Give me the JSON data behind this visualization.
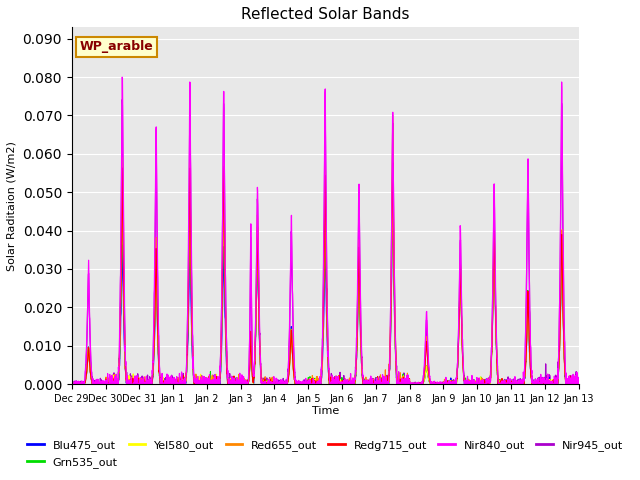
{
  "title": "Reflected Solar Bands",
  "xlabel": "Time",
  "ylabel": "Solar Raditaion (W/m2)",
  "ylim": [
    0,
    0.093
  ],
  "background_color": "#e8e8e8",
  "annotation_text": "WP_arable",
  "annotation_facecolor": "#ffffcc",
  "annotation_edgecolor": "#cc8800",
  "annotation_textcolor": "#880000",
  "series": [
    {
      "label": "Blu475_out",
      "color": "#0000ff",
      "lw": 0.8
    },
    {
      "label": "Grn535_out",
      "color": "#00dd00",
      "lw": 0.8
    },
    {
      "label": "Yel580_out",
      "color": "#ffff00",
      "lw": 0.8
    },
    {
      "label": "Red655_out",
      "color": "#ff8800",
      "lw": 0.8
    },
    {
      "label": "Redg715_out",
      "color": "#ff0000",
      "lw": 0.8
    },
    {
      "label": "Nir840_out",
      "color": "#ff00ff",
      "lw": 0.9
    },
    {
      "label": "Nir945_out",
      "color": "#aa00cc",
      "lw": 0.9
    }
  ],
  "tick_labels": [
    "Dec 29",
    "Dec 30",
    "Dec 31",
    "Jan 1",
    "Jan 2",
    "Jan 3",
    "Jan 4",
    "Jan 5",
    "Jan 6",
    "Jan 7",
    "Jan 8",
    "Jan 9",
    "Jan 10",
    "Jan 11",
    "Jan 12",
    "Jan 13"
  ],
  "tick_positions": [
    0,
    1,
    2,
    3,
    4,
    5,
    6,
    7,
    8,
    9,
    10,
    11,
    12,
    13,
    14,
    15
  ],
  "day_peaks": {
    "Nir840_out": [
      0.033,
      0.085,
      0.071,
      0.082,
      0.081,
      0.054,
      0.046,
      0.08,
      0.055,
      0.075,
      0.02,
      0.043,
      0.056,
      0.062,
      0.082,
      0.081
    ],
    "Nir945_out": [
      0.03,
      0.078,
      0.065,
      0.076,
      0.078,
      0.05,
      0.042,
      0.075,
      0.052,
      0.072,
      0.018,
      0.04,
      0.052,
      0.06,
      0.078,
      0.071
    ],
    "Blu475_out": [
      0.01,
      0.038,
      0.03,
      0.039,
      0.038,
      0.038,
      0.016,
      0.039,
      0.031,
      0.052,
      0.005,
      0.033,
      0.041,
      0.022,
      0.04,
      0.039
    ],
    "Grn535_out": [
      0.01,
      0.052,
      0.035,
      0.055,
      0.055,
      0.04,
      0.015,
      0.055,
      0.035,
      0.054,
      0.005,
      0.033,
      0.043,
      0.025,
      0.04,
      0.039
    ],
    "Yel580_out": [
      0.01,
      0.057,
      0.037,
      0.058,
      0.058,
      0.043,
      0.015,
      0.057,
      0.037,
      0.057,
      0.005,
      0.033,
      0.044,
      0.025,
      0.042,
      0.04
    ],
    "Red655_out": [
      0.01,
      0.062,
      0.04,
      0.062,
      0.062,
      0.046,
      0.015,
      0.061,
      0.04,
      0.073,
      0.013,
      0.033,
      0.044,
      0.025,
      0.042,
      0.04
    ],
    "Redg715_out": [
      0.01,
      0.06,
      0.038,
      0.06,
      0.06,
      0.044,
      0.015,
      0.058,
      0.038,
      0.062,
      0.012,
      0.033,
      0.044,
      0.025,
      0.042,
      0.04
    ]
  },
  "day_peaks2": {
    "Nir840_out": [
      0.0,
      0.0,
      0.0,
      0.0,
      0.0,
      0.042,
      0.0,
      0.0,
      0.0,
      0.0,
      0.0,
      0.0,
      0.0,
      0.0,
      0.0,
      0.082
    ],
    "Nir945_out": [
      0.0,
      0.0,
      0.0,
      0.0,
      0.0,
      0.039,
      0.0,
      0.0,
      0.0,
      0.0,
      0.0,
      0.0,
      0.0,
      0.0,
      0.0,
      0.078
    ],
    "Blu475_out": [
      0.0,
      0.0,
      0.0,
      0.0,
      0.0,
      0.013,
      0.0,
      0.0,
      0.0,
      0.0,
      0.0,
      0.0,
      0.0,
      0.0,
      0.0,
      0.038
    ],
    "Grn535_out": [
      0.0,
      0.0,
      0.0,
      0.0,
      0.0,
      0.014,
      0.0,
      0.0,
      0.0,
      0.0,
      0.0,
      0.0,
      0.0,
      0.0,
      0.0,
      0.039
    ],
    "Yel580_out": [
      0.0,
      0.0,
      0.0,
      0.0,
      0.0,
      0.014,
      0.0,
      0.0,
      0.0,
      0.0,
      0.0,
      0.0,
      0.0,
      0.0,
      0.0,
      0.04
    ],
    "Red655_out": [
      0.0,
      0.0,
      0.0,
      0.0,
      0.0,
      0.014,
      0.0,
      0.0,
      0.0,
      0.0,
      0.0,
      0.0,
      0.0,
      0.0,
      0.0,
      0.04
    ],
    "Redg715_out": [
      0.0,
      0.0,
      0.0,
      0.0,
      0.0,
      0.014,
      0.0,
      0.0,
      0.0,
      0.0,
      0.0,
      0.0,
      0.0,
      0.0,
      0.0,
      0.04
    ]
  },
  "grid_color": "#ffffff",
  "yticks": [
    0.0,
    0.01,
    0.02,
    0.03,
    0.04,
    0.05,
    0.06,
    0.07,
    0.08,
    0.09
  ]
}
